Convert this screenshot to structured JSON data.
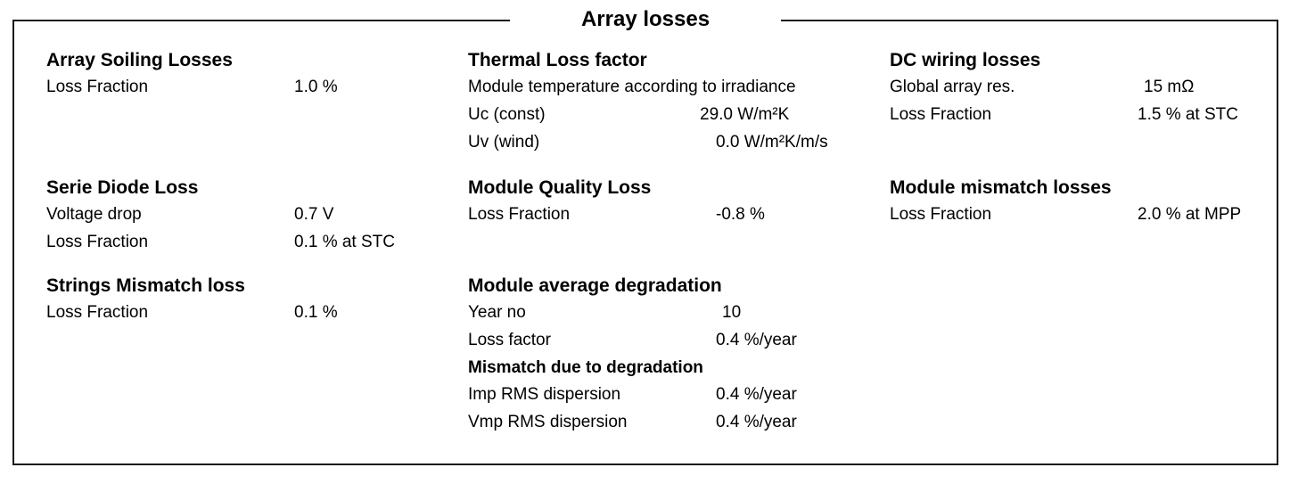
{
  "title": "Array losses",
  "col1": {
    "soiling": {
      "title": "Array Soiling Losses",
      "rows": [
        {
          "label": "Loss Fraction",
          "value": "1.0 %"
        }
      ]
    },
    "diode": {
      "title": "Serie Diode Loss",
      "rows": [
        {
          "label": "Voltage drop",
          "value": "0.7 V"
        },
        {
          "label": "Loss Fraction",
          "value": "0.1 % at STC"
        }
      ]
    },
    "strings": {
      "title": "Strings Mismatch loss",
      "rows": [
        {
          "label": "Loss Fraction",
          "value": "0.1 %"
        }
      ]
    }
  },
  "col2": {
    "thermal": {
      "title": "Thermal Loss factor",
      "note": "Module temperature according to irradiance",
      "rows": [
        {
          "label": "Uc (const)",
          "value": "29.0 W/m²K"
        },
        {
          "label": "Uv (wind)",
          "value": "0.0 W/m²K/m/s"
        }
      ]
    },
    "quality": {
      "title": "Module Quality Loss",
      "rows": [
        {
          "label": "Loss Fraction",
          "value": "-0.8 %"
        }
      ]
    },
    "degradation": {
      "title": "Module average degradation",
      "rows": [
        {
          "label": "Year no",
          "value": "10"
        },
        {
          "label": "Loss factor",
          "value": "0.4 %/year"
        }
      ],
      "subtitle": "Mismatch due to degradation",
      "sub_rows": [
        {
          "label": "Imp RMS dispersion",
          "value": "0.4 %/year"
        },
        {
          "label": "Vmp RMS dispersion",
          "value": "0.4 %/year"
        }
      ]
    }
  },
  "col3": {
    "wiring": {
      "title": "DC wiring losses",
      "rows": [
        {
          "label": "Global array res.",
          "value": "15 mΩ"
        },
        {
          "label": "Loss Fraction",
          "value": "1.5 % at STC"
        }
      ]
    },
    "mismatch": {
      "title": "Module mismatch losses",
      "rows": [
        {
          "label": "Loss Fraction",
          "value": "2.0 % at MPP"
        }
      ]
    }
  }
}
